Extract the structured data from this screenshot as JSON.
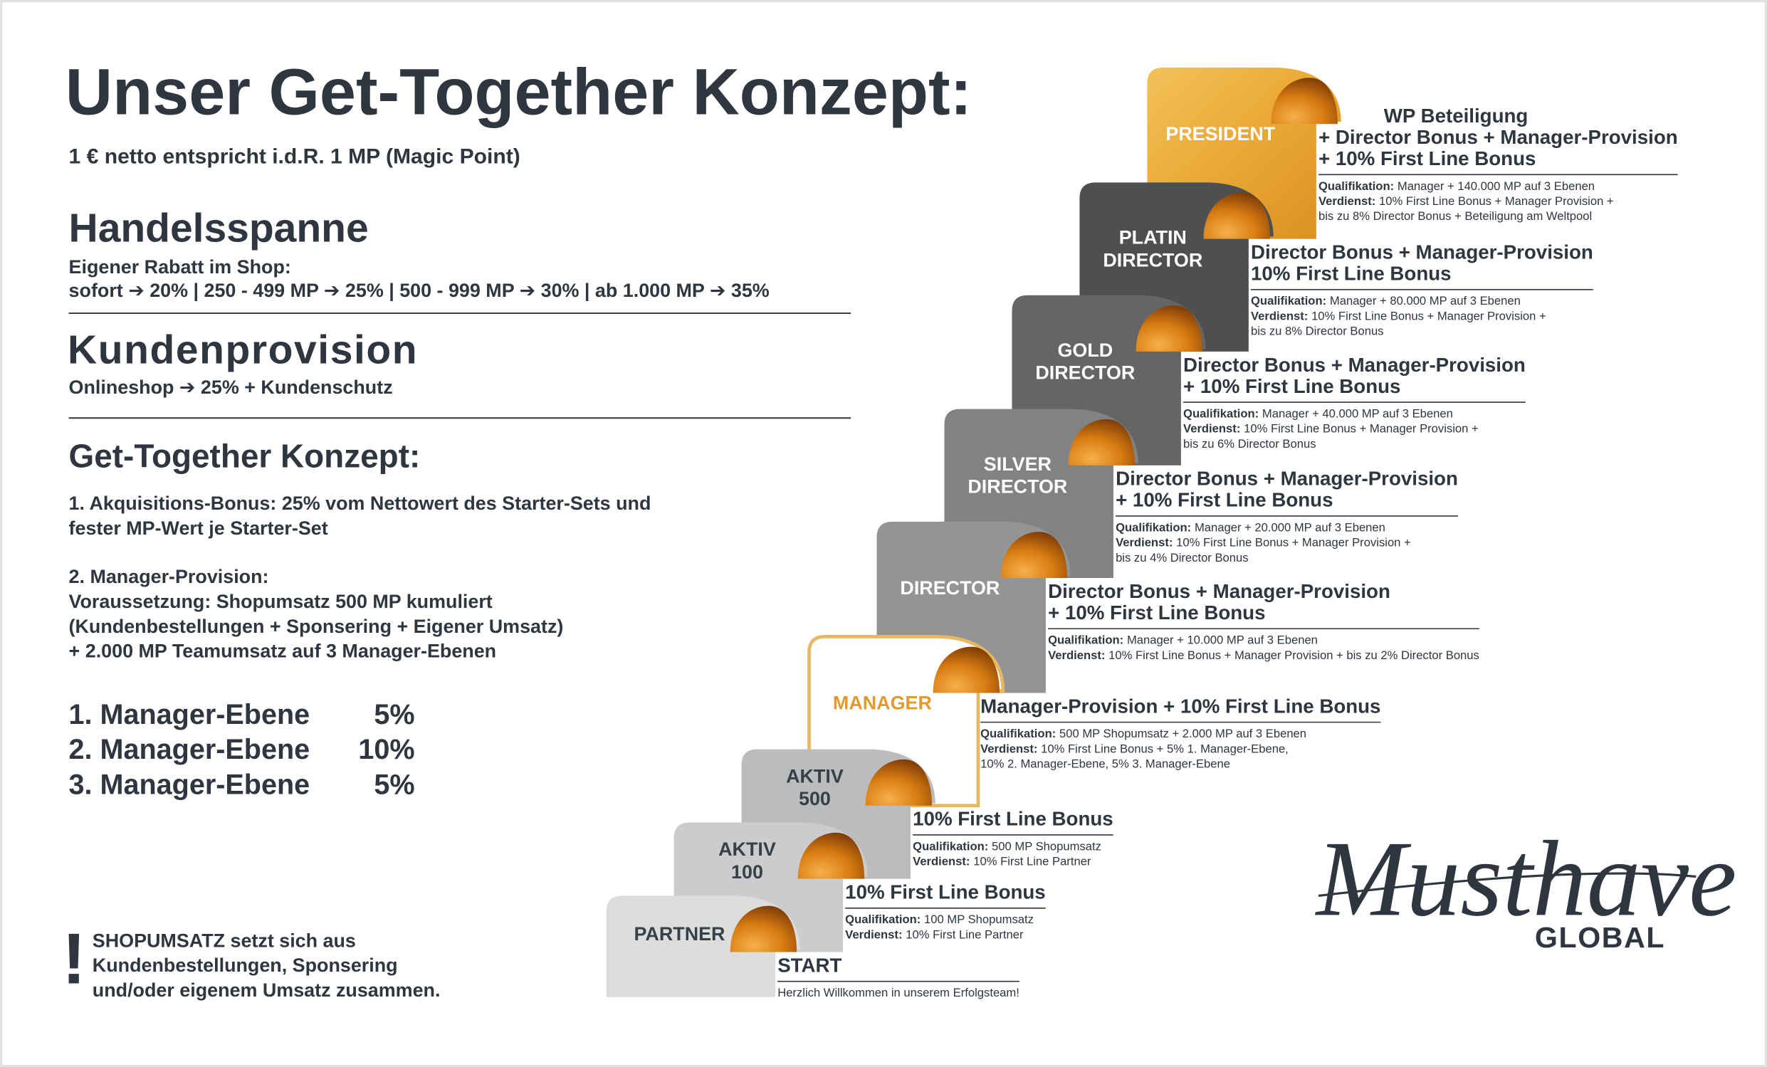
{
  "header": {
    "title": "Unser Get-Together Konzept:",
    "subtitle": "1 € netto entspricht i.d.R. 1 MP (Magic Point)"
  },
  "handelsspanne": {
    "heading": "Handelsspanne",
    "lines": [
      "Eigener Rabatt im Shop:",
      "sofort ➔ 20% | 250 - 499 MP ➔ 25% | 500 - 999 MP ➔ 30% | ab 1.000 MP ➔ 35%"
    ]
  },
  "kundenprovision": {
    "heading": "Kundenprovision",
    "text": "Onlineshop ➔ 25% + Kundenschutz"
  },
  "konzept": {
    "heading": "Get-Together Konzept:",
    "paragraphs": [
      [
        "1. Akquisitions-Bonus: 25% vom Nettowert des Starter-Sets und",
        "fester MP-Wert je Starter-Set"
      ],
      [
        "2. Manager-Provision:",
        "Voraussetzung: Shopumsatz 500 MP kumuliert",
        "(Kundenbestellungen + Sponsering + Eigener Umsatz)",
        "+ 2.000 MP Teamumsatz auf 3 Manager-Ebenen"
      ]
    ],
    "levels": [
      {
        "label": "1. Manager-Ebene",
        "value": "5%"
      },
      {
        "label": "2. Manager-Ebene",
        "value": "10%"
      },
      {
        "label": "3. Manager-Ebene",
        "value": "5%"
      }
    ]
  },
  "note": {
    "mark": "!",
    "lines": [
      "SHOPUMSATZ setzt sich aus",
      "Kundenbestellungen, Sponsering",
      "und/oder eigenem Umsatz zusammen."
    ]
  },
  "steps": [
    {
      "label": [
        "PARTNER"
      ],
      "title": [
        "START"
      ],
      "details": [
        {
          "text": "Herzlich Willkommen in unserem Erfolgsteam!"
        }
      ]
    },
    {
      "label": [
        "AKTIV",
        "100"
      ],
      "title": [
        "10% First Line Bonus"
      ],
      "details": [
        {
          "key": "Qualifikation:",
          "text": "100 MP Shopumsatz"
        },
        {
          "key": "Verdienst:",
          "text": "10% First Line Partner"
        }
      ]
    },
    {
      "label": [
        "AKTIV",
        "500"
      ],
      "title": [
        "10% First Line Bonus"
      ],
      "details": [
        {
          "key": "Qualifikation:",
          "text": "500 MP Shopumsatz"
        },
        {
          "key": "Verdienst:",
          "text": "10% First Line Partner"
        }
      ]
    },
    {
      "label": [
        "MANAGER"
      ],
      "title": [
        "Manager-Provision + 10% First Line Bonus"
      ],
      "details": [
        {
          "key": "Qualifikation:",
          "text": "500 MP Shopumsatz + 2.000 MP auf 3 Ebenen"
        },
        {
          "key": "Verdienst:",
          "text": "10% First Line Bonus + 5% 1. Manager-Ebene,"
        },
        {
          "text": "10% 2. Manager-Ebene, 5% 3. Manager-Ebene"
        }
      ]
    },
    {
      "label": [
        "DIRECTOR"
      ],
      "title": [
        "Director Bonus + Manager-Provision",
        "+ 10% First Line Bonus"
      ],
      "details": [
        {
          "key": "Qualifikation:",
          "text": "Manager + 10.000 MP auf 3 Ebenen"
        },
        {
          "key": "Verdienst:",
          "text": "10% First Line Bonus + Manager Provision + bis zu 2% Director Bonus"
        }
      ]
    },
    {
      "label": [
        "SILVER",
        "DIRECTOR"
      ],
      "title": [
        "Director Bonus + Manager-Provision",
        "+ 10% First Line Bonus"
      ],
      "details": [
        {
          "key": "Qualifikation:",
          "text": "Manager + 20.000 MP auf 3 Ebenen"
        },
        {
          "key": "Verdienst:",
          "text": "10% First Line Bonus + Manager Provision +"
        },
        {
          "text": "bis zu 4% Director Bonus"
        }
      ]
    },
    {
      "label": [
        "GOLD",
        "DIRECTOR"
      ],
      "title": [
        "Director Bonus + Manager-Provision",
        "+ 10% First Line Bonus"
      ],
      "details": [
        {
          "key": "Qualifikation:",
          "text": "Manager + 40.000 MP auf 3 Ebenen"
        },
        {
          "key": "Verdienst:",
          "text": "10% First Line Bonus + Manager Provision +"
        },
        {
          "text": "bis zu 6% Director Bonus"
        }
      ]
    },
    {
      "label": [
        "PLATIN",
        "DIRECTOR"
      ],
      "title": [
        "Director Bonus + Manager-Provision",
        "10% First Line Bonus"
      ],
      "details": [
        {
          "key": "Qualifikation:",
          "text": "Manager + 80.000 MP auf 3 Ebenen"
        },
        {
          "key": "Verdienst:",
          "text": "10% First Line Bonus + Manager Provision +"
        },
        {
          "text": "bis zu 8% Director Bonus"
        }
      ]
    },
    {
      "label": [
        "PRESIDENT"
      ],
      "title": [
        "WP Beteiligung",
        "+ Director Bonus + Manager-Provision",
        "+ 10% First Line Bonus"
      ],
      "details": [
        {
          "key": "Qualifikation:",
          "text": "Manager + 140.000 MP auf 3 Ebenen"
        },
        {
          "key": "Verdienst:",
          "text": "10% First Line Bonus + Manager Provision +"
        },
        {
          "text": "bis zu 8% Director Bonus + Beteiligung am Weltpool"
        }
      ]
    }
  ],
  "logo": {
    "script": "Musthave",
    "text": "GLOBAL"
  }
}
